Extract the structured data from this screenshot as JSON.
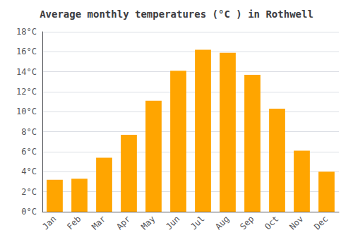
{
  "chart_data": {
    "type": "bar",
    "title": "Average monthly temperatures (°C ) in Rothwell",
    "categories": [
      "Jan",
      "Feb",
      "Mar",
      "Apr",
      "May",
      "Jun",
      "Jul",
      "Aug",
      "Sep",
      "Oct",
      "Nov",
      "Dec"
    ],
    "values": [
      3.2,
      3.3,
      5.4,
      7.7,
      11.1,
      14.1,
      16.2,
      15.9,
      13.7,
      10.3,
      6.1,
      4.0
    ],
    "color": "#FFA500",
    "ylim": [
      0,
      18
    ],
    "yticks": [
      {
        "value": 0,
        "label": "0°C"
      },
      {
        "value": 2,
        "label": "2°C"
      },
      {
        "value": 4,
        "label": "4°C"
      },
      {
        "value": 6,
        "label": "6°C"
      },
      {
        "value": 8,
        "label": "8°C"
      },
      {
        "value": 10,
        "label": "10°C"
      },
      {
        "value": 12,
        "label": "12°C"
      },
      {
        "value": 14,
        "label": "14°C"
      },
      {
        "value": 16,
        "label": "16°C"
      },
      {
        "value": 18,
        "label": "18°C"
      }
    ],
    "grid": true
  }
}
